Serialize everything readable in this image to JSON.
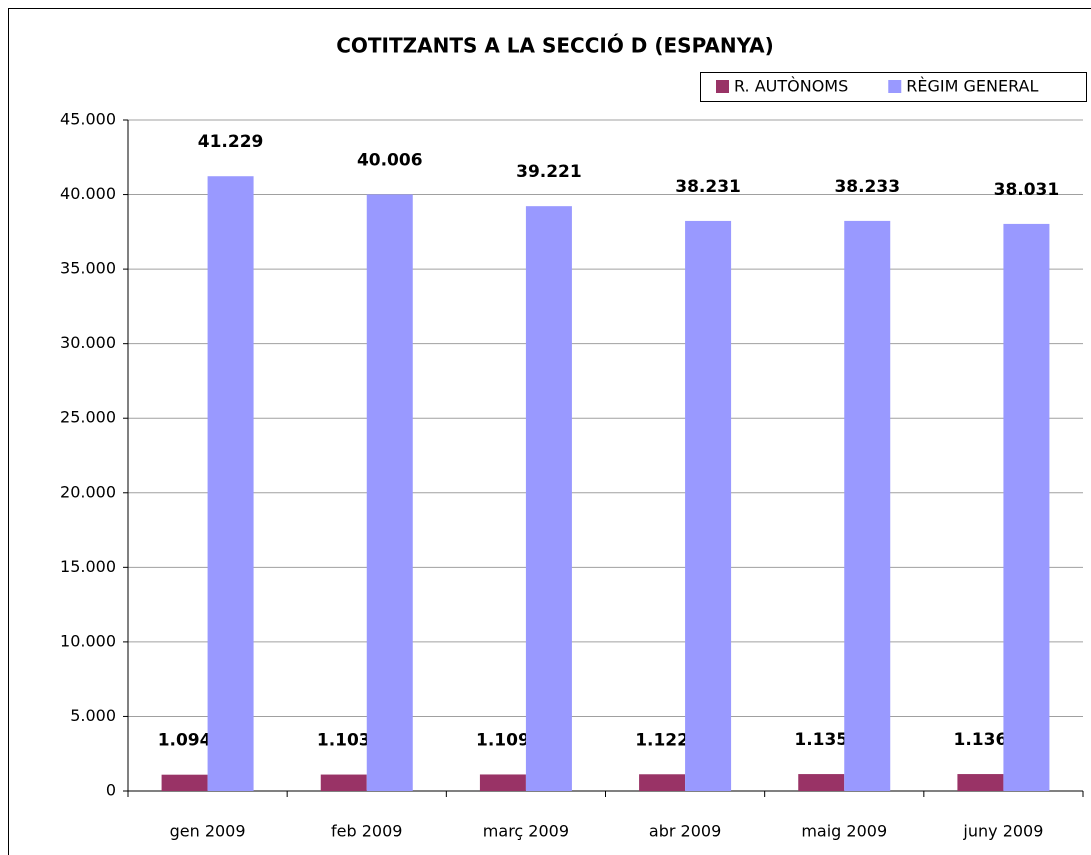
{
  "chart_data": {
    "type": "bar",
    "title": "COTITZANTS A LA SECCIÓ D (ESPANYA)",
    "categories": [
      "gen 2009",
      "feb 2009",
      "març 2009",
      "abr 2009",
      "maig 2009",
      "juny 2009"
    ],
    "series": [
      {
        "name": "R. AUTÒNOMS",
        "color": "#993366",
        "values": [
          1094,
          1103,
          1109,
          1122,
          1135,
          1136
        ],
        "value_labels": [
          "1.094",
          "1.103",
          "1.109",
          "1.122",
          "1.135",
          "1.136"
        ]
      },
      {
        "name": "RÈGIM GENERAL",
        "color": "#9999ff",
        "values": [
          41229,
          40006,
          39221,
          38231,
          38233,
          38031
        ],
        "value_labels": [
          "41.229",
          "40.006",
          "39.221",
          "38.231",
          "38.233",
          "38.031"
        ]
      }
    ],
    "ylim": [
      0,
      45000
    ],
    "yticks": [
      0,
      {
        "value": 5000,
        "label": "5.000"
      },
      {
        "value": 10000,
        "label": "10.000"
      },
      {
        "value": 15000,
        "label": "15.000"
      },
      {
        "value": 20000,
        "label": "20.000"
      },
      {
        "value": 25000,
        "label": "25.000"
      },
      {
        "value": 30000,
        "label": "30.000"
      },
      {
        "value": 35000,
        "label": "35.000"
      },
      {
        "value": 40000,
        "label": "40.000"
      },
      {
        "value": 45000,
        "label": "45.000"
      }
    ],
    "grid": true,
    "legend": "top-right"
  }
}
